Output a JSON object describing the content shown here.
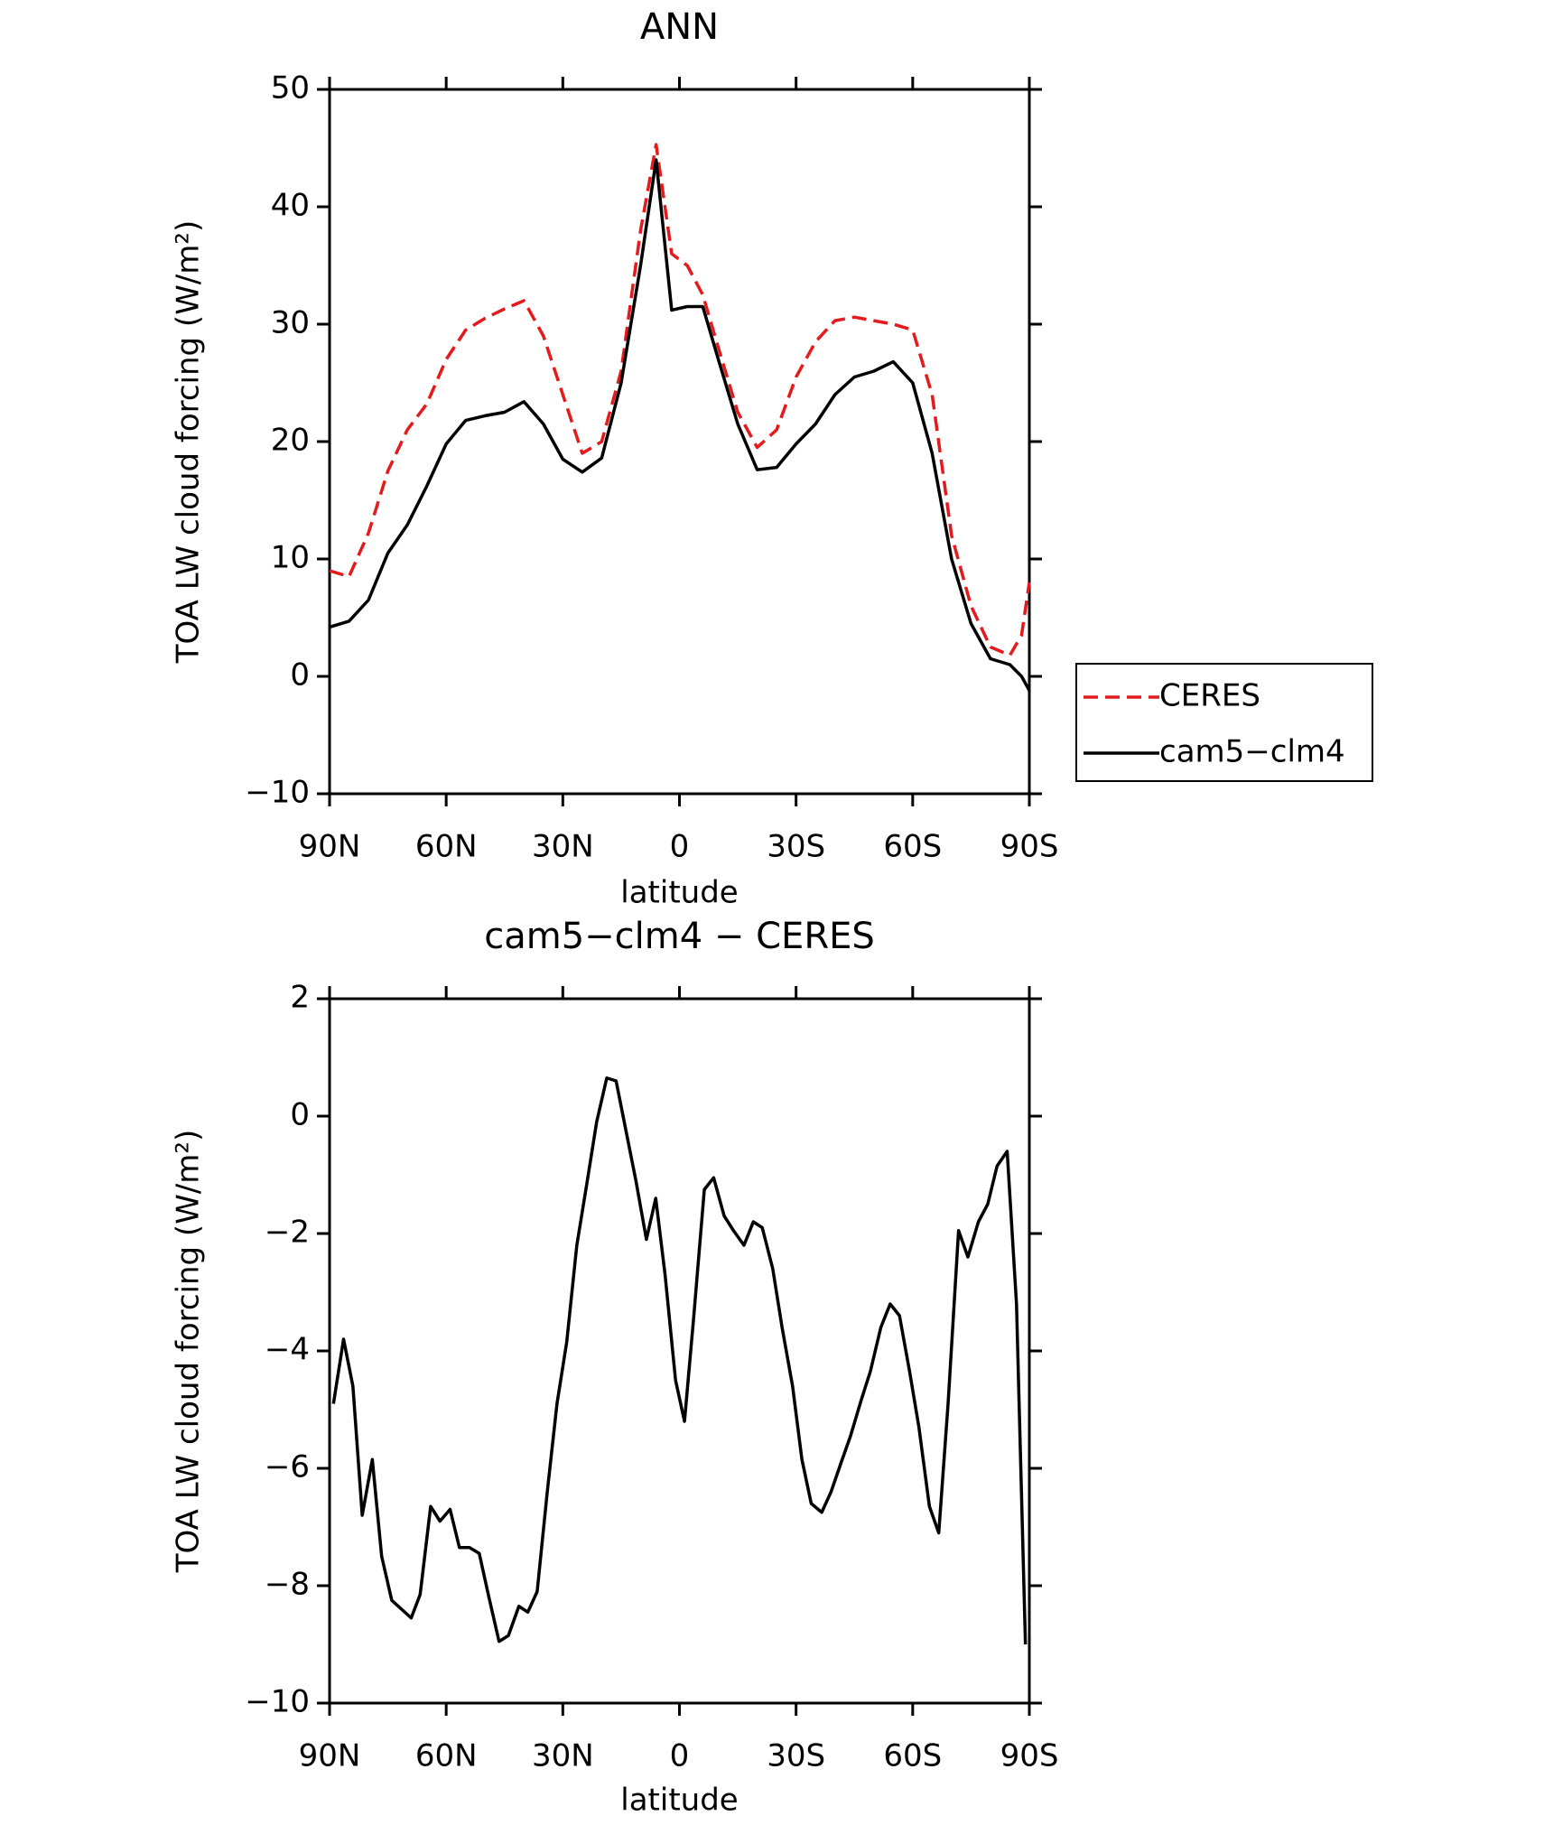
{
  "chart_data": [
    {
      "type": "line",
      "title": "ANN",
      "xlabel": "latitude",
      "ylabel": "TOA LW cloud forcing (W/m²)",
      "x": [
        90,
        85,
        80,
        75,
        70,
        65,
        60,
        55,
        50,
        45,
        40,
        35,
        30,
        25,
        20,
        15,
        10,
        6,
        2,
        -2,
        -6,
        -10,
        -15,
        -20,
        -25,
        -30,
        -35,
        -40,
        -45,
        -50,
        -55,
        -60,
        -65,
        -70,
        -75,
        -80,
        -85,
        -88,
        -90
      ],
      "series": [
        {
          "name": "CERES",
          "color": "#e41a1c",
          "linestyle": "dashed",
          "values": [
            9.0,
            8.5,
            12.2,
            17.5,
            21,
            23.2,
            27,
            29.5,
            30.5,
            31.3,
            32,
            29,
            24,
            19,
            20,
            26,
            38,
            45.3,
            36,
            35,
            32.5,
            28,
            22.5,
            19.5,
            21,
            25.5,
            28.5,
            30.3,
            30.6,
            30.3,
            30,
            29.5,
            24,
            12,
            6,
            2.5,
            1.8,
            3.5,
            8
          ]
        },
        {
          "name": "cam5−clm4",
          "color": "#000000",
          "linestyle": "solid",
          "values": [
            4.2,
            4.7,
            6.5,
            10.5,
            12.9,
            16.2,
            19.8,
            21.8,
            22.2,
            22.5,
            23.4,
            21.5,
            18.5,
            17.4,
            18.6,
            25,
            35,
            44,
            31.2,
            31.5,
            31.5,
            27,
            21.5,
            17.6,
            17.8,
            19.8,
            21.5,
            24,
            25.5,
            26,
            26.8,
            25,
            19,
            10,
            4.5,
            1.5,
            1,
            0,
            -1.2
          ]
        }
      ],
      "xlim": [
        90,
        -90
      ],
      "xticks": [
        {
          "value": 90,
          "label": "90N"
        },
        {
          "value": 60,
          "label": "60N"
        },
        {
          "value": 30,
          "label": "30N"
        },
        0,
        {
          "value": -30,
          "label": "30S"
        },
        {
          "value": -60,
          "label": "60S"
        },
        {
          "value": -90,
          "label": "90S"
        }
      ],
      "ylim": [
        -10,
        50
      ],
      "yticks": [
        {
          "value": -10,
          "label": "−10"
        },
        0,
        10,
        20,
        30,
        40,
        50
      ],
      "legend": "right"
    },
    {
      "type": "line",
      "title": "cam5−clm4 − CERES",
      "xlabel": "latitude",
      "ylabel": "TOA LW cloud forcing (W/m²)",
      "x": [
        89,
        86.4,
        84,
        81.6,
        79,
        76.6,
        74,
        71.5,
        69,
        66.7,
        64,
        61.6,
        59,
        56.6,
        54,
        51.5,
        49,
        46.4,
        44,
        41.3,
        39,
        36.6,
        34,
        31.5,
        29,
        26.4,
        23.7,
        21.3,
        18.7,
        16.3,
        13.6,
        11.2,
        8.5,
        6.1,
        3.7,
        1,
        -1.3,
        -3.7,
        -6.4,
        -8.8,
        -11.5,
        -13.9,
        -16.6,
        -19,
        -21.3,
        -24,
        -26.4,
        -29.1,
        -31.5,
        -33.9,
        -36.6,
        -39,
        -41.6,
        -44,
        -46.7,
        -49.1,
        -51.8,
        -54.2,
        -56.6,
        -59.2,
        -61.6,
        -64.3,
        -66.7,
        -69.1,
        -71.8,
        -74.2,
        -76.9,
        -79.3,
        -81.7,
        -84.3,
        -86.7,
        -89
      ],
      "series": [
        {
          "color": "#000000",
          "linestyle": "solid",
          "values": [
            -4.9,
            -3.8,
            -4.6,
            -6.8,
            -5.85,
            -7.5,
            -8.25,
            -8.4,
            -8.55,
            -8.15,
            -6.65,
            -6.9,
            -6.7,
            -7.35,
            -7.35,
            -7.45,
            -8.2,
            -8.95,
            -8.85,
            -8.35,
            -8.45,
            -8.1,
            -6.4,
            -4.9,
            -3.85,
            -2.2,
            -1.1,
            -0.1,
            0.65,
            0.6,
            -0.3,
            -1.1,
            -2.1,
            -1.4,
            -2.7,
            -4.5,
            -5.2,
            -3.4,
            -1.25,
            -1.05,
            -1.7,
            -1.95,
            -2.2,
            -1.8,
            -1.9,
            -2.6,
            -3.6,
            -4.6,
            -5.85,
            -6.6,
            -6.75,
            -6.4,
            -5.9,
            -5.45,
            -4.85,
            -4.35,
            -3.6,
            -3.2,
            -3.4,
            -4.35,
            -5.3,
            -6.65,
            -7.1,
            -4.9,
            -1.95,
            -2.4,
            -1.8,
            -1.5,
            -0.85,
            -0.6,
            -3.2,
            -9.0
          ]
        }
      ],
      "xlim": [
        90,
        -90
      ],
      "xticks": [
        {
          "value": 90,
          "label": "90N"
        },
        {
          "value": 60,
          "label": "60N"
        },
        {
          "value": 30,
          "label": "30N"
        },
        0,
        {
          "value": -30,
          "label": "30S"
        },
        {
          "value": -60,
          "label": "60S"
        },
        {
          "value": -90,
          "label": "90S"
        }
      ],
      "ylim": [
        -10,
        2
      ],
      "yticks": [
        {
          "value": -10,
          "label": "−10"
        },
        {
          "value": -8,
          "label": "−8"
        },
        {
          "value": -6,
          "label": "−6"
        },
        {
          "value": -4,
          "label": "−4"
        },
        {
          "value": -2,
          "label": "−2"
        },
        0,
        2
      ]
    }
  ]
}
